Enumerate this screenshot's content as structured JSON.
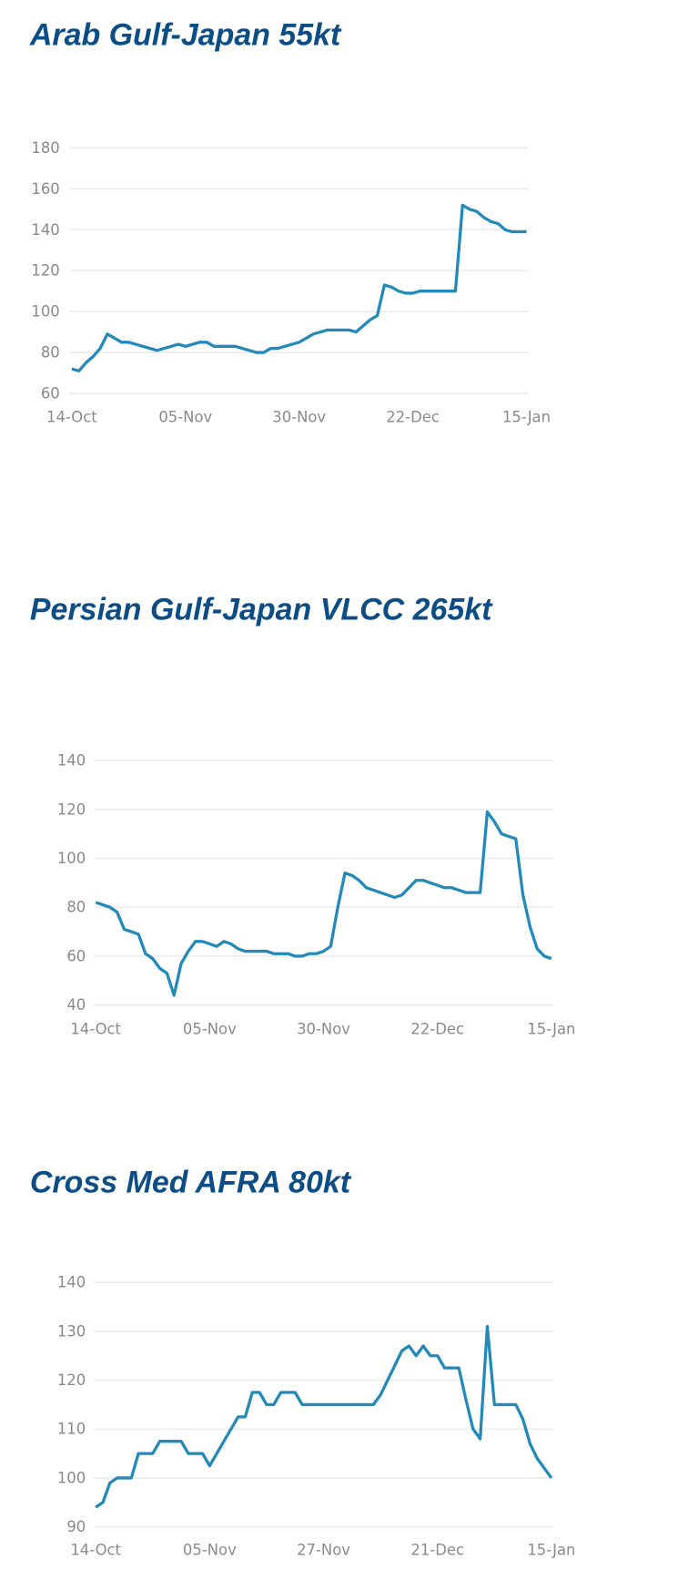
{
  "chart_data": [
    {
      "type": "line",
      "title": "Arab Gulf-Japan 55kt",
      "categories": [
        "14-Oct",
        null,
        null,
        null,
        null,
        null,
        null,
        null,
        null,
        null,
        null,
        null,
        null,
        null,
        null,
        null,
        "05-Nov",
        null,
        null,
        null,
        null,
        null,
        null,
        null,
        null,
        null,
        null,
        null,
        null,
        null,
        null,
        null,
        "30-Nov",
        null,
        null,
        null,
        null,
        null,
        null,
        null,
        null,
        null,
        null,
        null,
        null,
        null,
        null,
        null,
        "22-Dec",
        null,
        null,
        null,
        null,
        null,
        null,
        null,
        null,
        null,
        null,
        null,
        null,
        null,
        null,
        null,
        "15-Jan"
      ],
      "values": [
        72,
        71,
        75,
        78,
        82,
        89,
        87,
        85,
        85,
        84,
        83,
        82,
        81,
        82,
        83,
        84,
        83,
        84,
        85,
        85,
        83,
        83,
        83,
        83,
        82,
        81,
        80,
        80,
        82,
        82,
        83,
        84,
        85,
        87,
        89,
        90,
        91,
        91,
        91,
        91,
        90,
        93,
        96,
        98,
        113,
        112,
        110,
        109,
        109,
        110,
        110,
        110,
        110,
        110,
        110,
        152,
        150,
        149,
        146,
        144,
        143,
        140,
        139,
        139,
        139
      ],
      "color": "#2389b8",
      "ylim": [
        60,
        180
      ],
      "yticks": [
        60,
        80,
        100,
        120,
        140,
        160,
        180
      ],
      "grid": true
    },
    {
      "type": "line",
      "title": "Persian Gulf-Japan VLCC 265kt",
      "categories": [
        "14-Oct",
        null,
        null,
        null,
        null,
        null,
        null,
        null,
        null,
        null,
        null,
        null,
        null,
        null,
        null,
        null,
        "05-Nov",
        null,
        null,
        null,
        null,
        null,
        null,
        null,
        null,
        null,
        null,
        null,
        null,
        null,
        null,
        null,
        "30-Nov",
        null,
        null,
        null,
        null,
        null,
        null,
        null,
        null,
        null,
        null,
        null,
        null,
        null,
        null,
        null,
        "22-Dec",
        null,
        null,
        null,
        null,
        null,
        null,
        null,
        null,
        null,
        null,
        null,
        null,
        null,
        null,
        null,
        "15-Jan"
      ],
      "values": [
        82,
        81,
        80,
        78,
        71,
        70,
        69,
        61,
        59,
        55,
        53,
        44,
        57,
        62,
        66,
        66,
        65,
        64,
        66,
        65,
        63,
        62,
        62,
        62,
        62,
        61,
        61,
        61,
        60,
        60,
        61,
        61,
        62,
        64,
        80,
        94,
        93,
        91,
        88,
        87,
        86,
        85,
        84,
        85,
        88,
        91,
        91,
        90,
        89,
        88,
        88,
        87,
        86,
        86,
        86,
        119,
        115,
        110,
        109,
        108,
        85,
        72,
        63,
        60,
        59
      ],
      "color": "#2389b8",
      "ylim": [
        40,
        140
      ],
      "yticks": [
        40,
        60,
        80,
        100,
        120,
        140
      ],
      "grid": true
    },
    {
      "type": "line",
      "title": "Cross Med AFRA 80kt",
      "categories": [
        "14-Oct",
        null,
        null,
        null,
        null,
        null,
        null,
        null,
        null,
        null,
        null,
        null,
        null,
        null,
        null,
        null,
        "05-Nov",
        null,
        null,
        null,
        null,
        null,
        null,
        null,
        null,
        null,
        null,
        null,
        null,
        null,
        null,
        null,
        "27-Nov",
        null,
        null,
        null,
        null,
        null,
        null,
        null,
        null,
        null,
        null,
        null,
        null,
        null,
        null,
        null,
        "21-Dec",
        null,
        null,
        null,
        null,
        null,
        null,
        null,
        null,
        null,
        null,
        null,
        null,
        null,
        null,
        null,
        "15-Jan"
      ],
      "values": [
        94,
        95,
        99,
        100,
        100,
        100,
        105,
        105,
        105,
        107.5,
        107.5,
        107.5,
        107.5,
        105,
        105,
        105,
        102.5,
        105,
        107.5,
        110,
        112.5,
        112.5,
        117.5,
        117.5,
        115,
        115,
        117.5,
        117.5,
        117.5,
        115,
        115,
        115,
        115,
        115,
        115,
        115,
        115,
        115,
        115,
        115,
        117,
        120,
        123,
        126,
        127,
        125,
        127,
        125,
        125,
        122.5,
        122.5,
        122.5,
        116,
        110,
        108,
        131,
        115,
        115,
        115,
        115,
        112,
        107,
        104,
        102,
        100
      ],
      "color": "#2389b8",
      "ylim": [
        90,
        140
      ],
      "yticks": [
        90,
        100,
        110,
        120,
        130,
        140
      ],
      "grid": true
    }
  ]
}
